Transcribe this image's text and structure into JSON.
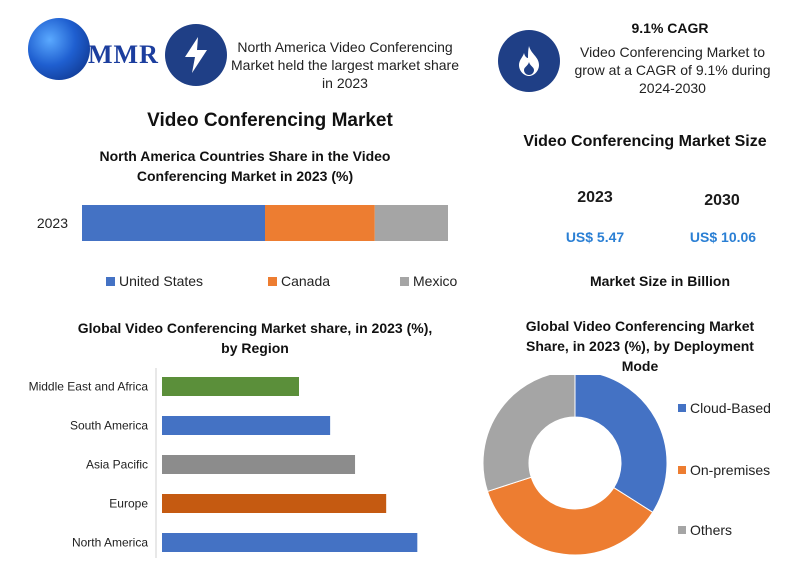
{
  "brand": {
    "logo_text": "MMR"
  },
  "header": {
    "left_text": "North America Video Conferencing Market held the largest market share in 2023",
    "cagr_title": "9.1% CAGR",
    "cagr_text": "Video Conferencing Market to grow at a CAGR of 9.1% during 2024-2030",
    "left_icon": "lightning-icon",
    "right_icon": "flame-icon"
  },
  "main_title": "Video Conferencing Market",
  "market_size": {
    "title": "Video Conferencing Market Size",
    "years": [
      "2023",
      "2030"
    ],
    "values": [
      "US$ 5.47",
      "US$ 10.06"
    ],
    "footnote": "Market Size in Billion"
  },
  "chart_data": [
    {
      "type": "bar",
      "orientation": "stacked-horizontal",
      "title": "North America Countries Share in the Video Conferencing  Market in 2023 (%)",
      "categories": [
        "2023"
      ],
      "series": [
        {
          "name": "United States",
          "values": [
            50
          ],
          "color": "#4472c4"
        },
        {
          "name": "Canada",
          "values": [
            30
          ],
          "color": "#ed7d31"
        },
        {
          "name": "Mexico",
          "values": [
            20
          ],
          "color": "#a5a5a5"
        }
      ],
      "legend": "bottom"
    },
    {
      "type": "bar",
      "orientation": "horizontal",
      "title": "Global Video Conferencing Market share, in 2023 (%), by Region",
      "categories": [
        "Middle East and Africa",
        "South America",
        "Asia Pacific",
        "Europe",
        "North America"
      ],
      "values": [
        11,
        13.5,
        15.5,
        18,
        20.5
      ],
      "colors": [
        "#5b8f3a",
        "#4472c4",
        "#8c8c8c",
        "#c55a11",
        "#4472c4"
      ],
      "xlim": [
        0,
        22
      ]
    },
    {
      "type": "pie",
      "style": "donut",
      "title": "Global Video Conferencing Market Share, in 2023 (%), by Deployment Mode",
      "categories": [
        "Cloud-Based",
        "On-premises",
        "Others"
      ],
      "values": [
        34,
        36,
        30
      ],
      "colors": [
        "#4472c4",
        "#ed7d31",
        "#a5a5a5"
      ],
      "legend": "right"
    }
  ]
}
